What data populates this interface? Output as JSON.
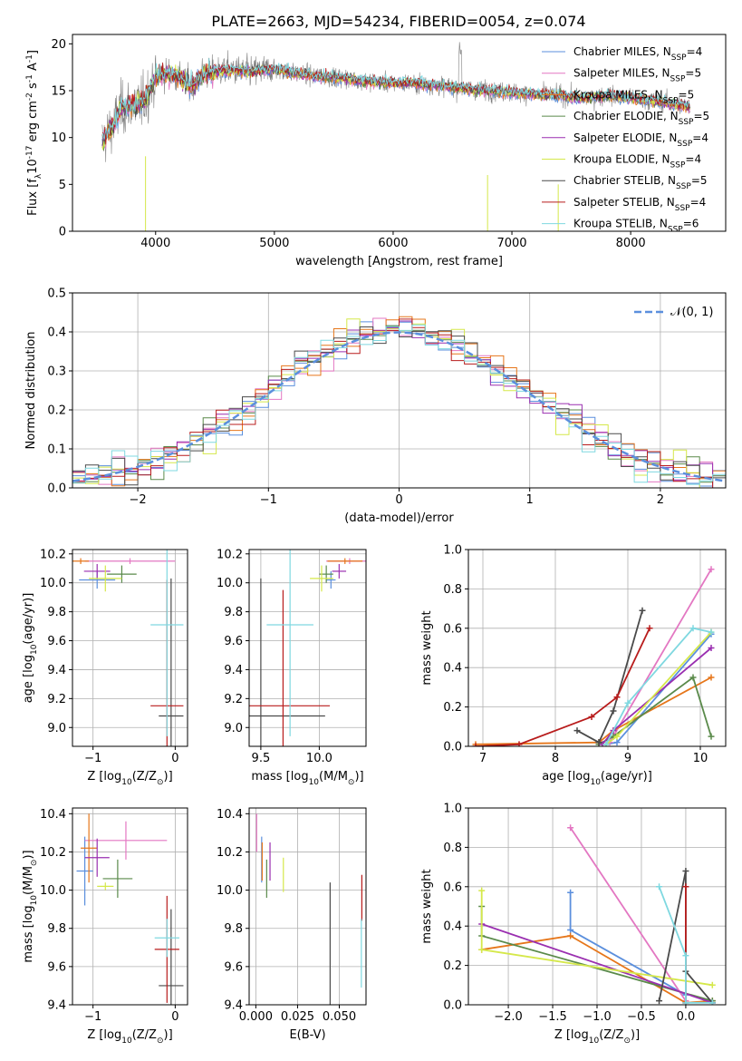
{
  "figure_title": "PLATE=2663, MJD=54234, FIBERID=0054, z=0.074",
  "models": [
    {
      "name": "Chabrier MILES",
      "nssp": "4",
      "color": "#5b8fdd"
    },
    {
      "name": "Salpeter MILES",
      "nssp": "5",
      "color": "#e377c2"
    },
    {
      "name": "Kroupa MILES",
      "nssp": "5",
      "color": "#e6761a"
    },
    {
      "name": "Chabrier ELODIE",
      "nssp": "5",
      "color": "#5a8a4a"
    },
    {
      "name": "Salpeter ELODIE",
      "nssp": "4",
      "color": "#9a2fb0"
    },
    {
      "name": "Kroupa ELODIE",
      "nssp": "4",
      "color": "#d5e84a"
    },
    {
      "name": "Chabrier STELIB",
      "nssp": "5",
      "color": "#4a4a4a"
    },
    {
      "name": "Salpeter STELIB",
      "nssp": "4",
      "color": "#b81c1c"
    },
    {
      "name": "Kroupa STELIB",
      "nssp": "6",
      "color": "#7fd8e0"
    }
  ],
  "chart_data": [
    {
      "type": "line",
      "xlabel": "wavelength [Angstrom, rest frame]",
      "ylabel": "Flux [f$_\\lambda$10$^{-17}$ erg cm$^{-2}$ s$^{-1}$ A$^{-1}$]",
      "xlim": [
        3300,
        8800
      ],
      "ylim": [
        0,
        21
      ],
      "xticks": [
        4000,
        5000,
        6000,
        7000,
        8000
      ],
      "yticks": [
        0,
        5,
        10,
        15,
        20
      ],
      "data_color": "#808080",
      "spectrum_x": [
        3550,
        3600,
        3650,
        3700,
        3800,
        3900,
        4000,
        4100,
        4200,
        4300,
        4400,
        4500,
        4600,
        4800,
        5000,
        5200,
        5400,
        5600,
        5800,
        6000,
        6200,
        6400,
        6600,
        6800,
        7000,
        7200,
        7400,
        7600,
        7800,
        8000,
        8200,
        8400,
        8500
      ],
      "spectrum_y": [
        9.5,
        10.5,
        11.5,
        13.0,
        13.5,
        13.8,
        16.5,
        16.8,
        16.5,
        15.5,
        16.8,
        17.0,
        17.2,
        17.0,
        17.3,
        16.8,
        16.5,
        16.3,
        16.0,
        15.8,
        15.8,
        15.5,
        15.2,
        15.0,
        14.8,
        14.6,
        14.5,
        14.2,
        14.5,
        14.2,
        13.9,
        13.5,
        13.2
      ],
      "legend_position": "upper right"
    },
    {
      "type": "histogram",
      "xlabel": "(data-model)/error",
      "ylabel": "Normed distribution",
      "xlim": [
        -2.5,
        2.5
      ],
      "ylim": [
        0,
        0.5
      ],
      "xticks": [
        -2,
        -1,
        0,
        1,
        2
      ],
      "yticks": [
        0.0,
        0.1,
        0.2,
        0.3,
        0.4,
        0.5
      ],
      "reference_label": "$\\mathcal{N}(0, 1)$",
      "reference_color": "#5b8fdd",
      "bin_width": 0.1,
      "legend_position": "upper right"
    },
    {
      "type": "errorbar",
      "xlabel": "Z [log$_{10}$(Z/Z$_\\odot$)]",
      "ylabel": "age  [log$_{10}$(age/yr)]",
      "xlim": [
        -1.25,
        0.15
      ],
      "ylim": [
        8.87,
        10.23
      ],
      "xticks": [
        -1,
        0
      ],
      "yticks": [
        9.0,
        9.2,
        9.4,
        9.6,
        9.8,
        10.0,
        10.2
      ],
      "points": [
        {
          "x": -0.95,
          "y": 10.02,
          "xerr": 0.22,
          "yerr": 0.06
        },
        {
          "x": -0.55,
          "y": 10.15,
          "xerr": 0.55,
          "yerr": 0.02
        },
        {
          "x": -1.15,
          "y": 10.15,
          "xerr": 0.1,
          "yerr": 0.02
        },
        {
          "x": -0.65,
          "y": 10.06,
          "xerr": 0.18,
          "yerr": 0.06
        },
        {
          "x": -0.95,
          "y": 10.08,
          "xerr": 0.16,
          "yerr": 0.05
        },
        {
          "x": -0.85,
          "y": 10.03,
          "xerr": 0.2,
          "yerr": 0.09
        },
        {
          "x": -0.05,
          "y": 9.08,
          "xerr": 0.15,
          "yerr": 0.95
        },
        {
          "x": -0.1,
          "y": 9.15,
          "xerr": 0.2,
          "yerr": 0.87
        },
        {
          "x": -0.1,
          "y": 9.71,
          "xerr": 0.2,
          "yerr": 0.77
        }
      ]
    },
    {
      "type": "errorbar",
      "xlabel": "mass [log$_{10}$(M/M$_\\odot$)]",
      "ylabel": "",
      "xlim": [
        9.4,
        10.4
      ],
      "ylim": [
        8.87,
        10.23
      ],
      "xticks": [
        9.5,
        10.0
      ],
      "yticks": [
        9.0,
        9.2,
        9.4,
        9.6,
        9.8,
        10.0,
        10.2
      ],
      "points": [
        {
          "x": 10.1,
          "y": 10.02,
          "xerr": 0.04,
          "yerr": 0.06
        },
        {
          "x": 10.26,
          "y": 10.15,
          "xerr": 0.2,
          "yerr": 0.02
        },
        {
          "x": 10.22,
          "y": 10.15,
          "xerr": 0.15,
          "yerr": 0.02
        },
        {
          "x": 10.06,
          "y": 10.06,
          "xerr": 0.06,
          "yerr": 0.06
        },
        {
          "x": 10.17,
          "y": 10.08,
          "xerr": 0.06,
          "yerr": 0.05
        },
        {
          "x": 10.02,
          "y": 10.03,
          "xerr": 0.1,
          "yerr": 0.09
        },
        {
          "x": 9.5,
          "y": 9.08,
          "xerr": 0.55,
          "yerr": 0.95
        },
        {
          "x": 9.69,
          "y": 9.15,
          "xerr": 0.4,
          "yerr": 0.8
        },
        {
          "x": 9.75,
          "y": 9.71,
          "xerr": 0.2,
          "yerr": 0.77
        }
      ]
    },
    {
      "type": "line",
      "xlabel": "age  [log$_{10}$(age/yr)]",
      "ylabel": "mass weight",
      "xlim": [
        6.8,
        10.35
      ],
      "ylim": [
        0,
        1
      ],
      "xticks": [
        7,
        8,
        9,
        10
      ],
      "yticks": [
        0.0,
        0.2,
        0.4,
        0.6,
        0.8,
        1.0
      ],
      "series": [
        {
          "x": [
            8.7,
            8.85,
            10.15
          ],
          "y": [
            0.01,
            0.02,
            0.57
          ]
        },
        {
          "x": [
            8.75,
            10.15
          ],
          "y": [
            0.02,
            0.9
          ]
        },
        {
          "x": [
            6.9,
            8.6,
            8.8,
            10.15
          ],
          "y": [
            0.01,
            0.02,
            0.08,
            0.35
          ]
        },
        {
          "x": [
            8.6,
            8.8,
            9.9,
            10.15
          ],
          "y": [
            0.01,
            0.05,
            0.35,
            0.05
          ]
        },
        {
          "x": [
            8.65,
            8.8,
            10.15
          ],
          "y": [
            0.01,
            0.08,
            0.5
          ]
        },
        {
          "x": [
            8.7,
            8.85,
            10.15
          ],
          "y": [
            0.01,
            0.05,
            0.58
          ]
        },
        {
          "x": [
            8.3,
            8.6,
            8.8,
            9.2
          ],
          "y": [
            0.08,
            0.02,
            0.18,
            0.69
          ]
        },
        {
          "x": [
            6.9,
            7.5,
            8.5,
            8.85,
            9.3
          ],
          "y": [
            0.0,
            0.01,
            0.15,
            0.25,
            0.6
          ]
        },
        {
          "x": [
            8.7,
            9.0,
            9.9,
            10.15
          ],
          "y": [
            0.01,
            0.22,
            0.6,
            0.58
          ]
        }
      ]
    },
    {
      "type": "errorbar",
      "xlabel": "Z [log$_{10}$(Z/Z$_\\odot$)]",
      "ylabel": "mass [log$_{10}$(M/M$_\\odot$)]",
      "xlim": [
        -1.25,
        0.15
      ],
      "ylim": [
        9.4,
        10.43
      ],
      "xticks": [
        -1,
        0
      ],
      "yticks": [
        9.4,
        9.6,
        9.8,
        10.0,
        10.2,
        10.4
      ],
      "points": [
        {
          "x": -1.1,
          "y": 10.1,
          "xerr": 0.1,
          "yerr": 0.18
        },
        {
          "x": -0.6,
          "y": 10.26,
          "xerr": 0.5,
          "yerr": 0.1
        },
        {
          "x": -1.05,
          "y": 10.22,
          "xerr": 0.1,
          "yerr": 0.18
        },
        {
          "x": -0.7,
          "y": 10.06,
          "xerr": 0.18,
          "yerr": 0.1
        },
        {
          "x": -0.95,
          "y": 10.17,
          "xerr": 0.15,
          "yerr": 0.1
        },
        {
          "x": -0.85,
          "y": 10.02,
          "xerr": 0.1,
          "yerr": 0.02
        },
        {
          "x": -0.05,
          "y": 9.5,
          "xerr": 0.15,
          "yerr": 0.4
        },
        {
          "x": -0.1,
          "y": 9.69,
          "xerr": 0.15,
          "yerr": 0.28
        },
        {
          "x": -0.1,
          "y": 9.75,
          "xerr": 0.15,
          "yerr": 0.1
        }
      ]
    },
    {
      "type": "errorbar",
      "xlabel": "E(B-V)",
      "ylabel": "",
      "xlim": [
        -0.004,
        0.066
      ],
      "ylim": [
        9.4,
        10.43
      ],
      "xticks": [
        0.0,
        0.025,
        0.05
      ],
      "yticks": [
        9.4,
        9.6,
        9.8,
        10.0,
        10.2,
        10.4
      ],
      "points": [
        {
          "x": 0.0035,
          "y": 10.16,
          "xerr": 0,
          "yerr": 0.12
        },
        {
          "x": 0.0005,
          "y": 10.3,
          "xerr": 0,
          "yerr": 0.1
        },
        {
          "x": 0.0038,
          "y": 10.15,
          "xerr": 0,
          "yerr": 0.1
        },
        {
          "x": 0.0065,
          "y": 10.06,
          "xerr": 0,
          "yerr": 0.1
        },
        {
          "x": 0.0085,
          "y": 10.15,
          "xerr": 0,
          "yerr": 0.1
        },
        {
          "x": 0.0165,
          "y": 10.08,
          "xerr": 0,
          "yerr": 0.09
        },
        {
          "x": 0.0445,
          "y": 9.66,
          "xerr": 0,
          "yerr": 0.38
        },
        {
          "x": 0.0635,
          "y": 9.96,
          "xerr": 0,
          "yerr": 0.12
        },
        {
          "x": 0.0632,
          "y": 9.67,
          "xerr": 0,
          "yerr": 0.18
        }
      ]
    },
    {
      "type": "line",
      "xlabel": "Z [log$_{10}$(Z/Z$_\\odot$)]",
      "ylabel": "mass weight",
      "xlim": [
        -2.45,
        0.45
      ],
      "ylim": [
        0,
        1
      ],
      "xticks": [
        -2.0,
        -1.5,
        -1.0,
        -0.5,
        0.0
      ],
      "yticks": [
        0.0,
        0.2,
        0.4,
        0.6,
        0.8,
        1.0
      ],
      "series": [
        {
          "x": [
            -1.3,
            -1.3,
            0.0,
            0.0
          ],
          "y": [
            0.57,
            0.38,
            0.05,
            0.01
          ]
        },
        {
          "x": [
            -1.3,
            0.0
          ],
          "y": [
            0.9,
            0.02
          ]
        },
        {
          "x": [
            -2.3,
            -1.3,
            0.0,
            0.3
          ],
          "y": [
            0.28,
            0.35,
            0.01,
            0.02
          ]
        },
        {
          "x": [
            -2.3,
            -2.3,
            0.3
          ],
          "y": [
            0.5,
            0.35,
            0.02
          ]
        },
        {
          "x": [
            -2.3,
            0.3
          ],
          "y": [
            0.41,
            0.01
          ]
        },
        {
          "x": [
            -2.3,
            -2.3,
            0.3
          ],
          "y": [
            0.58,
            0.28,
            0.1
          ]
        },
        {
          "x": [
            -0.3,
            0.0,
            0.0,
            0.3
          ],
          "y": [
            0.02,
            0.68,
            0.17,
            0.01
          ]
        },
        {
          "x": [
            0.0,
            0.0
          ],
          "y": [
            0.6,
            0.01
          ]
        },
        {
          "x": [
            -0.3,
            0.0,
            0.0,
            0.3
          ],
          "y": [
            0.6,
            0.25,
            0.01,
            0.01
          ]
        }
      ]
    }
  ]
}
